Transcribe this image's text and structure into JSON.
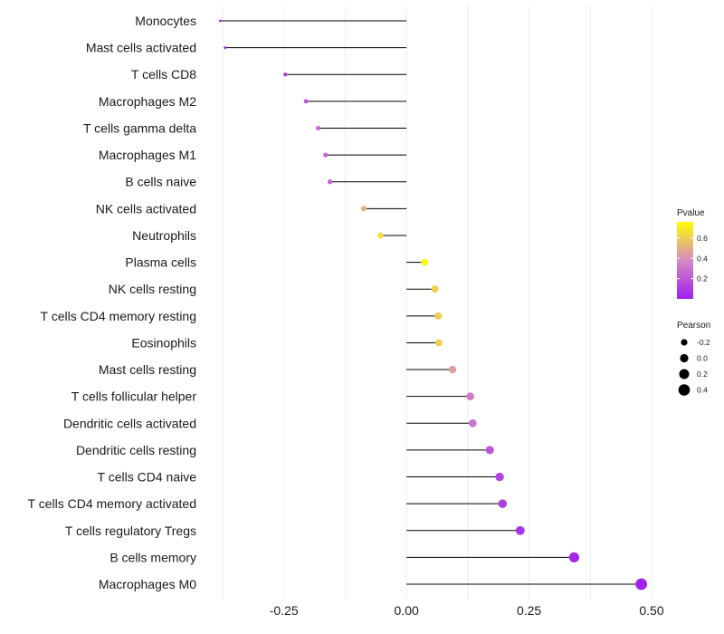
{
  "chart_data": {
    "type": "lollipop",
    "title": "",
    "xlabel": "",
    "ylabel": "",
    "xlim": [
      -0.375,
      0.5
    ],
    "x_ticks": [
      -0.25,
      0.0,
      0.25,
      0.5
    ],
    "x_tick_labels": [
      "-0.25",
      "0.00",
      "0.25",
      "0.50"
    ],
    "grid": "vertical",
    "baseline": 0,
    "categories": [
      "Monocytes",
      "Mast cells activated",
      "T cells CD8",
      "Macrophages M2",
      "T cells gamma delta",
      "Macrophages M1",
      "B cells naive",
      "NK cells activated",
      "Neutrophils",
      "Plasma cells",
      "NK cells resting",
      "T cells CD4 memory resting",
      "Eosinophils",
      "Mast cells resting",
      "T cells follicular helper",
      "Dendritic cells activated",
      "Dendritic cells resting",
      "T cells CD4 naive",
      "T cells CD4 memory activated",
      "T cells regulatory  Tregs",
      "B cells memory",
      "Macrophages M0"
    ],
    "pearson": [
      -0.38,
      -0.37,
      -0.247,
      -0.205,
      -0.18,
      -0.165,
      -0.156,
      -0.087,
      -0.053,
      0.037,
      0.058,
      0.065,
      0.066,
      0.094,
      0.13,
      0.135,
      0.17,
      0.19,
      0.196,
      0.232,
      0.342,
      0.479
    ],
    "pvalue": [
      0.02,
      0.03,
      0.1,
      0.2,
      0.25,
      0.25,
      0.27,
      0.5,
      0.65,
      0.74,
      0.6,
      0.6,
      0.6,
      0.45,
      0.33,
      0.3,
      0.2,
      0.12,
      0.11,
      0.08,
      0.03,
      0.004
    ],
    "legend": {
      "color": {
        "title": "Pvalue",
        "ticks": [
          0.2,
          0.4,
          0.6
        ],
        "tick_labels": [
          "0.2",
          "0.4",
          "0.6"
        ],
        "range": [
          0.0,
          0.76
        ],
        "low_color": "#a020f0",
        "mid_color": "#d58ac0",
        "high_color": "#ffff00",
        "position": "right"
      },
      "size": {
        "title": "Pearson",
        "values": [
          -0.2,
          0.0,
          0.2,
          0.4
        ],
        "labels": [
          "-0.2",
          "0.0",
          "0.2",
          "0.4"
        ],
        "position": "right"
      }
    }
  }
}
